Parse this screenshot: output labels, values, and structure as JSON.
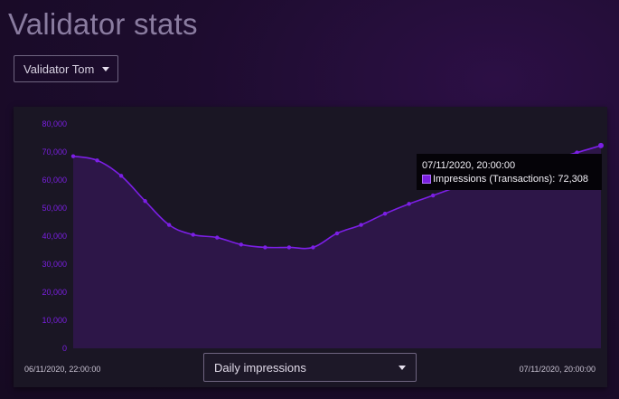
{
  "page": {
    "title": "Validator stats"
  },
  "validator_select": {
    "value": "Validator Tom"
  },
  "metric_select": {
    "value": "Daily impressions"
  },
  "tooltip": {
    "date": "07/11/2020, 20:00:00",
    "series": "Impressions (Transactions)",
    "value": "72,308"
  },
  "colors": {
    "accent": "#7a1fe0",
    "line": "#7c1fe6",
    "area": "#2d1648",
    "panel": "#1a1624"
  },
  "chart_data": {
    "type": "area",
    "x_start_label": "06/11/2020, 22:00:00",
    "x_end_label": "07/11/2020, 20:00:00",
    "y_ticks": [
      "0",
      "10,000",
      "20,000",
      "30,000",
      "40,000",
      "50,000",
      "60,000",
      "70,000",
      "80,000"
    ],
    "ylim": [
      0,
      80000
    ],
    "grid": false,
    "series": [
      {
        "name": "Impressions (Transactions)",
        "values": [
          68500,
          67000,
          61500,
          52500,
          44000,
          40500,
          39500,
          37000,
          36000,
          36000,
          36000,
          41000,
          44000,
          48000,
          51500,
          54500,
          57500,
          60000,
          62500,
          65000,
          67500,
          69800,
          72308
        ]
      }
    ]
  }
}
